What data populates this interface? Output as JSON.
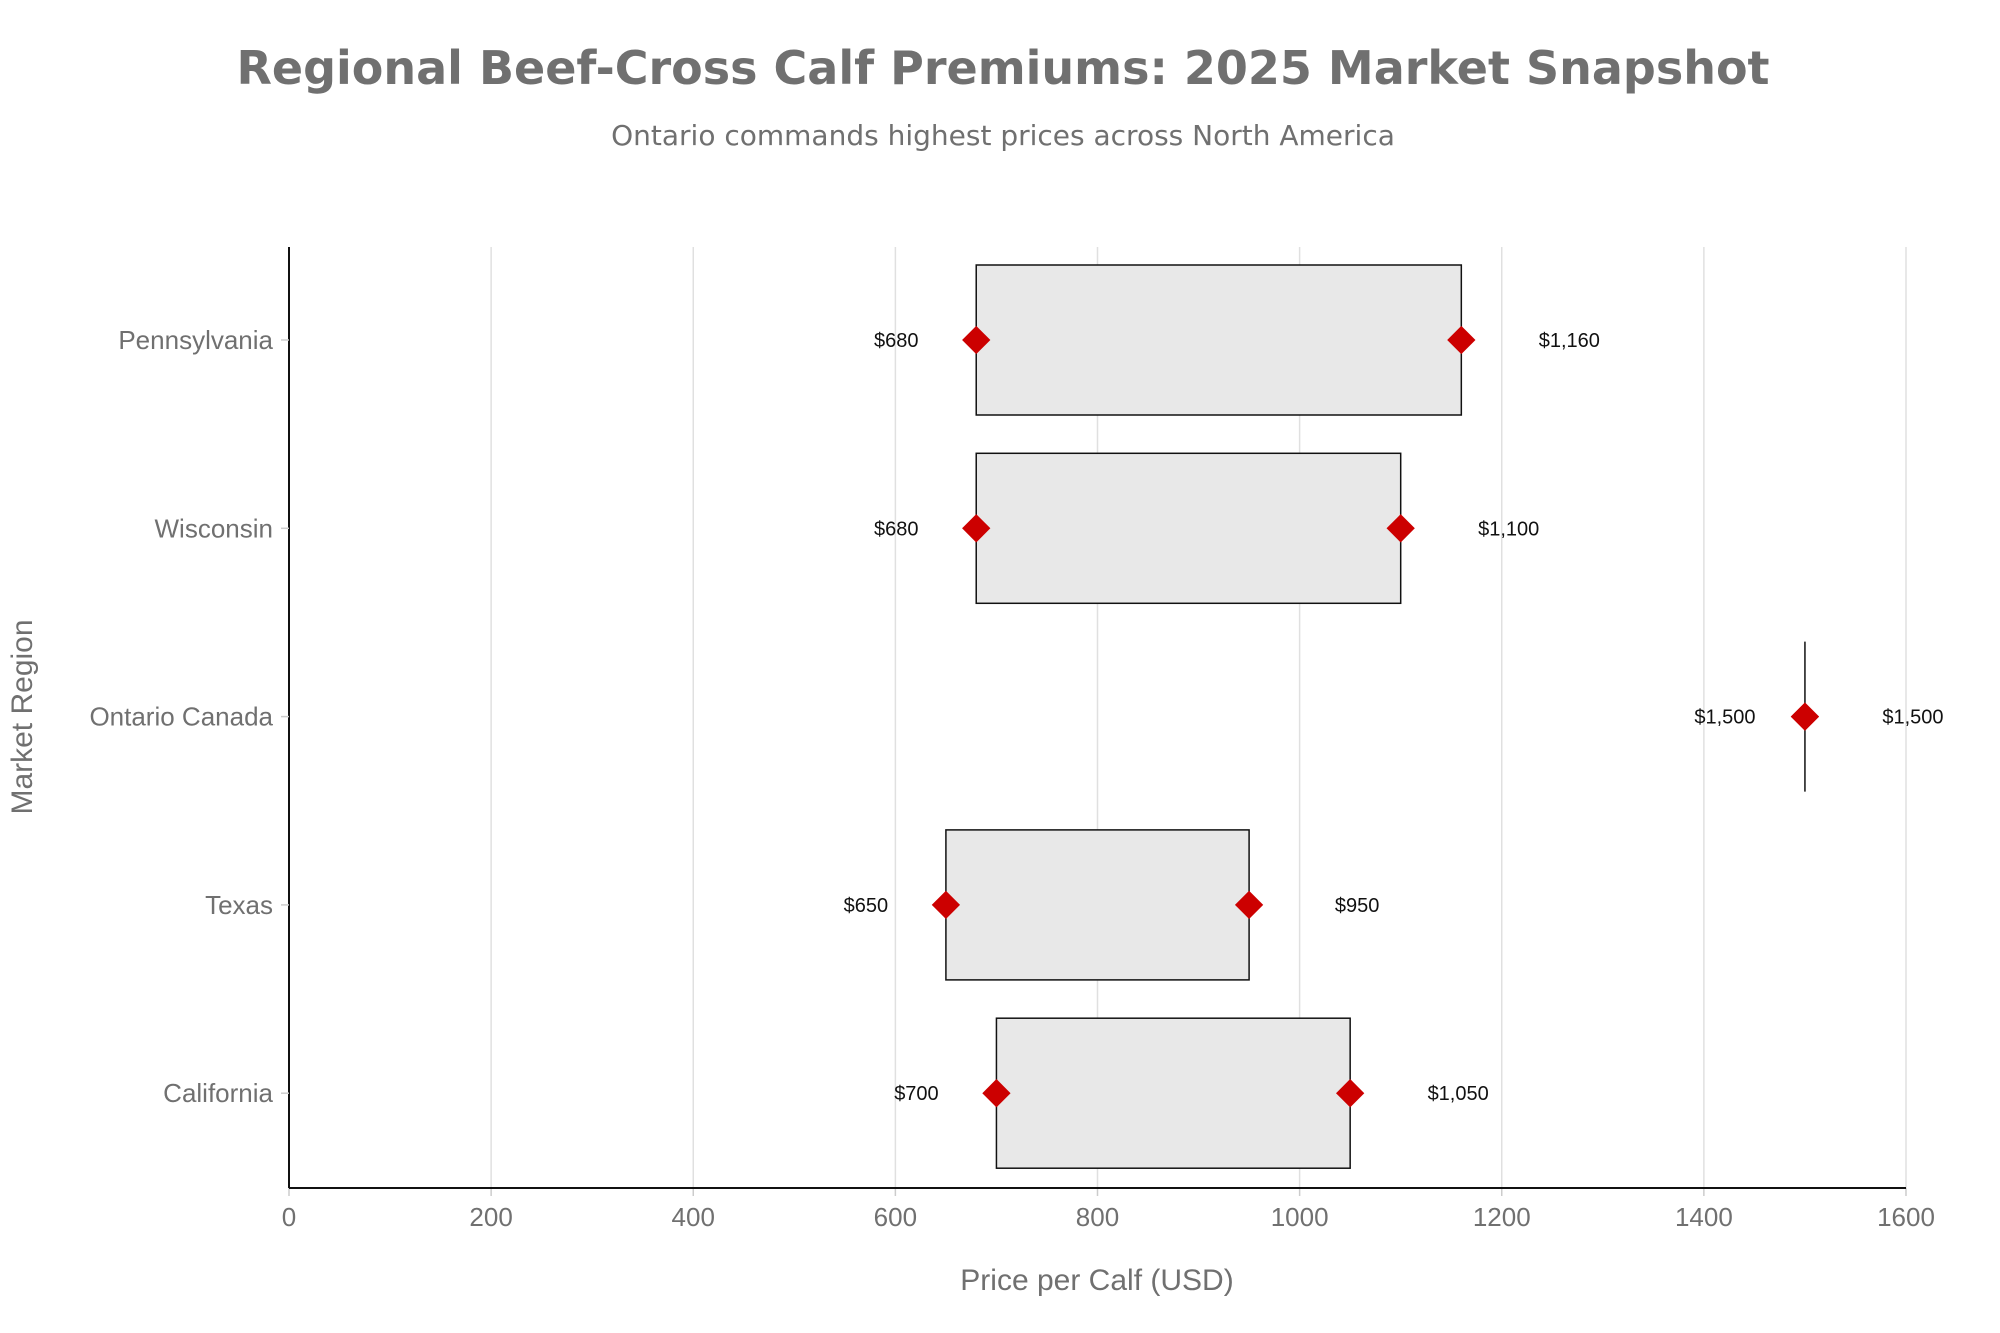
{
  "chart_data": {
    "type": "range-bar",
    "title": "Regional Beef-Cross Calf Premiums: 2025 Market Snapshot",
    "subtitle": "Ontario commands highest prices across North America",
    "xlabel": "Price per Calf (USD)",
    "ylabel": "Market Region",
    "xlim": [
      0,
      1600
    ],
    "xticks": [
      "0",
      "200",
      "400",
      "600",
      "800",
      "1000",
      "1200",
      "1400",
      "1600"
    ],
    "grid": true,
    "categories": [
      "Pennsylvania",
      "Wisconsin",
      "Ontario Canada",
      "Texas",
      "California"
    ],
    "series": [
      {
        "name": "low",
        "values": [
          680,
          680,
          1500,
          650,
          700
        ],
        "labels": [
          "$680",
          "$680",
          "$1,500",
          "$650",
          "$700"
        ]
      },
      {
        "name": "high",
        "values": [
          1160,
          1100,
          1500,
          950,
          1050
        ],
        "labels": [
          "$1,160",
          "$1,100",
          "$1,500",
          "$950",
          "$1,050"
        ]
      }
    ],
    "colors": {
      "box": "#e8e8e8",
      "marker": "#cc0000",
      "grid": "#e0e0e0",
      "text": "#707070"
    }
  }
}
